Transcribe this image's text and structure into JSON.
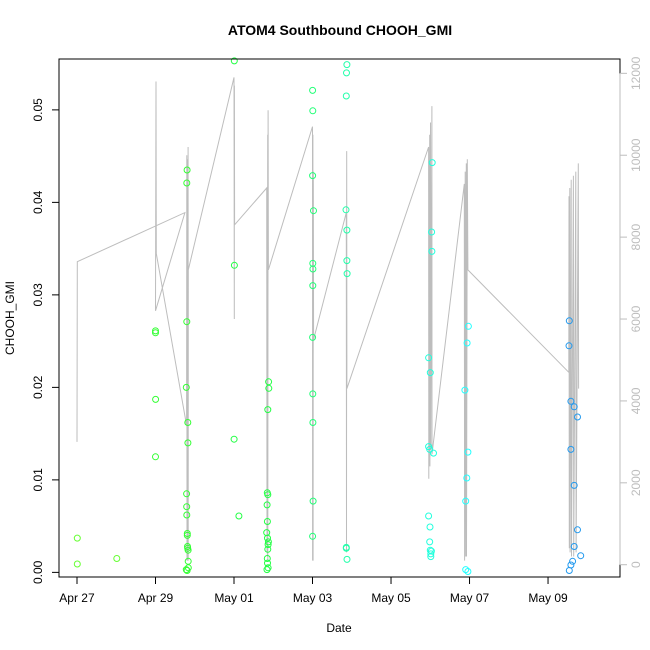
{
  "chart_data": {
    "type": "scatter",
    "title": "ATOM4 Southbound CHOOH_GMI",
    "xlabel": "Date",
    "ylabel": "CHOOH_GMI",
    "xlim": [
      "2016-04-26T13:00",
      "2016-05-10T20:00"
    ],
    "ylim": [
      -0.0005,
      0.0555
    ],
    "x_ticks": [
      {
        "label": "Apr 27",
        "date": "2016-04-27"
      },
      {
        "label": "Apr 29",
        "date": "2016-04-29"
      },
      {
        "label": "May 01",
        "date": "2016-05-01"
      },
      {
        "label": "May 03",
        "date": "2016-05-03"
      },
      {
        "label": "May 05",
        "date": "2016-05-05"
      },
      {
        "label": "May 07",
        "date": "2016-05-07"
      },
      {
        "label": "May 09",
        "date": "2016-05-09"
      }
    ],
    "y_ticks": [
      "0.00",
      "0.01",
      "0.02",
      "0.03",
      "0.04",
      "0.05"
    ],
    "y2_ticks": [
      "0",
      "2000",
      "4000",
      "6000",
      "8000",
      "10000",
      "12000"
    ],
    "y2lim": [
      -300,
      12350
    ],
    "grid": false,
    "colors": {
      "altitude_line": "#bdbdbd",
      "axis": "#000000",
      "right_axis": "#bdbdbd",
      "text": "#000000"
    },
    "series": [
      {
        "color": "#66ff33",
        "points": [
          [
            "2016-04-27T00:10",
            0.0037
          ],
          [
            "2016-04-27T00:10",
            0.0009
          ],
          [
            "2016-04-28T00:20",
            0.0015
          ]
        ]
      },
      {
        "color": "#33ff33",
        "points": [
          [
            "2016-04-29T00:00",
            0.0261
          ],
          [
            "2016-04-29T00:00",
            0.0259
          ],
          [
            "2016-04-29T00:05",
            0.0187
          ],
          [
            "2016-04-29T00:00",
            0.0125
          ],
          [
            "2016-04-29T18:50",
            0.02
          ],
          [
            "2016-04-29T19:00",
            0.0085
          ],
          [
            "2016-04-29T19:05",
            0.0071
          ],
          [
            "2016-04-29T19:10",
            0.0062
          ],
          [
            "2016-04-29T19:10",
            0.0421
          ],
          [
            "2016-04-29T19:10",
            0.0271
          ],
          [
            "2016-04-29T19:20",
            0.0435
          ],
          [
            "2016-04-29T19:25",
            0.0042
          ],
          [
            "2016-04-29T19:25",
            0.004
          ],
          [
            "2016-04-29T19:35",
            0.0028
          ],
          [
            "2016-04-29T19:40",
            0.0026
          ],
          [
            "2016-04-29T19:45",
            0.0162
          ],
          [
            "2016-04-29T19:50",
            0.014
          ],
          [
            "2016-04-29T19:55",
            0.0024
          ],
          [
            "2016-04-29T20:00",
            0.0012
          ],
          [
            "2016-04-29T20:05",
            0.0005
          ],
          [
            "2016-04-29T18:50",
            0.0003
          ],
          [
            "2016-04-29T19:20",
            0.0002
          ]
        ]
      },
      {
        "color": "#22ff44",
        "points": [
          [
            "2016-05-01T00:10",
            0.0553
          ],
          [
            "2016-05-01T00:15",
            0.0332
          ],
          [
            "2016-05-01T00:05",
            0.0144
          ],
          [
            "2016-05-01T03:00",
            0.0061
          ],
          [
            "2016-05-01T20:20",
            0.0086
          ],
          [
            "2016-05-01T20:40",
            0.0084
          ],
          [
            "2016-05-01T20:15",
            0.0073
          ],
          [
            "2016-05-01T20:00",
            0.0043
          ],
          [
            "2016-05-01T20:30",
            0.0037
          ],
          [
            "2016-05-01T20:50",
            0.003
          ],
          [
            "2016-05-01T21:00",
            0.0033
          ],
          [
            "2016-05-01T20:40",
            0.0025
          ],
          [
            "2016-05-01T20:20",
            0.0015
          ],
          [
            "2016-05-01T20:30",
            0.001
          ],
          [
            "2016-05-01T20:50",
            0.0005
          ],
          [
            "2016-05-01T20:10",
            0.0003
          ],
          [
            "2016-05-01T20:40",
            0.0176
          ],
          [
            "2016-05-01T21:10",
            0.0206
          ],
          [
            "2016-05-01T21:15",
            0.0199
          ],
          [
            "2016-05-01T20:25",
            0.0055
          ]
        ]
      },
      {
        "color": "#22ff77",
        "points": [
          [
            "2016-05-03T00:05",
            0.0521
          ],
          [
            "2016-05-03T00:10",
            0.0499
          ],
          [
            "2016-05-03T00:05",
            0.0429
          ],
          [
            "2016-05-03T00:10",
            0.0334
          ],
          [
            "2016-05-03T00:15",
            0.0328
          ],
          [
            "2016-05-03T00:10",
            0.031
          ],
          [
            "2016-05-03T00:05",
            0.0254
          ],
          [
            "2016-05-03T00:10",
            0.0193
          ],
          [
            "2016-05-03T00:15",
            0.0162
          ],
          [
            "2016-05-03T00:20",
            0.0077
          ],
          [
            "2016-05-03T00:05",
            0.0039
          ],
          [
            "2016-05-03T00:35",
            0.0391
          ]
        ]
      },
      {
        "color": "#22ffaa",
        "points": [
          [
            "2016-05-03T21:00",
            0.0549
          ],
          [
            "2016-05-03T20:45",
            0.054
          ],
          [
            "2016-05-03T20:40",
            0.0515
          ],
          [
            "2016-05-03T20:30",
            0.0392
          ],
          [
            "2016-05-03T21:00",
            0.037
          ],
          [
            "2016-05-03T21:00",
            0.0337
          ],
          [
            "2016-05-03T21:10",
            0.0323
          ],
          [
            "2016-05-03T20:40",
            0.0027
          ],
          [
            "2016-05-03T20:40",
            0.0026
          ],
          [
            "2016-05-03T21:05",
            0.0014
          ]
        ]
      },
      {
        "color": "#22ffdd",
        "points": [
          [
            "2016-05-05T23:00",
            0.0232
          ],
          [
            "2016-05-06T00:00",
            0.0216
          ],
          [
            "2016-05-05T23:00",
            0.0136
          ],
          [
            "2016-05-05T23:40",
            0.0133
          ],
          [
            "2016-05-06T02:00",
            0.0129
          ],
          [
            "2016-05-06T01:10",
            0.0443
          ],
          [
            "2016-05-06T00:50",
            0.0368
          ],
          [
            "2016-05-06T01:00",
            0.0347
          ],
          [
            "2016-05-05T23:00",
            0.0061
          ],
          [
            "2016-05-05T23:50",
            0.0049
          ],
          [
            "2016-05-05T23:40",
            0.0033
          ],
          [
            "2016-05-06T00:00",
            0.0024
          ],
          [
            "2016-05-06T00:20",
            0.002
          ],
          [
            "2016-05-06T00:40",
            0.0023
          ],
          [
            "2016-05-06T00:20",
            0.0017
          ]
        ]
      },
      {
        "color": "#22ffff",
        "points": [
          [
            "2016-05-06T21:10",
            0.0197
          ],
          [
            "2016-05-06T22:30",
            0.0248
          ],
          [
            "2016-05-06T23:20",
            0.0266
          ],
          [
            "2016-05-06T23:00",
            0.013
          ],
          [
            "2016-05-06T22:20",
            0.0102
          ],
          [
            "2016-05-06T21:40",
            0.0077
          ],
          [
            "2016-05-06T21:40",
            0.0003
          ],
          [
            "2016-05-06T23:00",
            0.0001
          ]
        ]
      },
      {
        "color": "#2299ee",
        "points": [
          [
            "2016-05-09T13:00",
            0.0272
          ],
          [
            "2016-05-09T12:50",
            0.0245
          ],
          [
            "2016-05-09T14:00",
            0.0185
          ],
          [
            "2016-05-09T16:00",
            0.0179
          ],
          [
            "2016-05-09T18:00",
            0.0168
          ],
          [
            "2016-05-09T14:00",
            0.0133
          ],
          [
            "2016-05-09T16:00",
            0.0094
          ],
          [
            "2016-05-09T18:00",
            0.0046
          ],
          [
            "2016-05-09T16:00",
            0.0028
          ],
          [
            "2016-05-09T20:00",
            0.0018
          ],
          [
            "2016-05-09T15:00",
            0.0012
          ],
          [
            "2016-05-09T14:00",
            0.0008
          ],
          [
            "2016-05-09T13:00",
            0.0002
          ]
        ]
      }
    ],
    "altitude_line": [
      [
        "2016-04-27T00:00",
        3000
      ],
      [
        "2016-04-27T00:10",
        7400
      ],
      [
        "2016-04-29T18:00",
        8600
      ],
      [
        "2016-04-29T00:00",
        6200
      ],
      [
        "2016-04-29T00:20",
        11800
      ],
      [
        "2016-04-29T00:30",
        7600
      ],
      [
        "2016-04-29T19:00",
        3400
      ],
      [
        "2016-04-29T19:10",
        10000
      ],
      [
        "2016-04-29T19:15",
        100
      ],
      [
        "2016-04-29T19:20",
        9800
      ],
      [
        "2016-04-29T19:30",
        200
      ],
      [
        "2016-04-29T19:40",
        9900
      ],
      [
        "2016-04-29T19:45",
        100
      ],
      [
        "2016-04-29T19:55",
        10200
      ],
      [
        "2016-04-29T20:00",
        100
      ],
      [
        "2016-04-29T20:05",
        7200
      ],
      [
        "2016-05-01T00:00",
        11900
      ],
      [
        "2016-05-01T00:10",
        6000
      ],
      [
        "2016-05-01T00:15",
        11700
      ],
      [
        "2016-05-01T00:20",
        8300
      ],
      [
        "2016-05-01T20:00",
        9200
      ],
      [
        "2016-05-01T20:10",
        300
      ],
      [
        "2016-05-01T20:20",
        8500
      ],
      [
        "2016-05-01T20:25",
        200
      ],
      [
        "2016-05-01T20:35",
        10500
      ],
      [
        "2016-05-01T20:40",
        100
      ],
      [
        "2016-05-01T20:50",
        11100
      ],
      [
        "2016-05-01T21:00",
        7200
      ],
      [
        "2016-05-03T00:00",
        10700
      ],
      [
        "2016-05-03T00:05",
        100
      ],
      [
        "2016-05-03T00:15",
        10500
      ],
      [
        "2016-05-03T00:20",
        100
      ],
      [
        "2016-05-03T00:30",
        9600
      ],
      [
        "2016-05-03T00:40",
        5500
      ],
      [
        "2016-05-03T20:40",
        8600
      ],
      [
        "2016-05-03T20:45",
        300
      ],
      [
        "2016-05-03T20:55",
        10100
      ],
      [
        "2016-05-03T21:00",
        4300
      ],
      [
        "2016-05-05T23:00",
        10200
      ],
      [
        "2016-05-05T23:05",
        2100
      ],
      [
        "2016-05-05T23:40",
        10500
      ],
      [
        "2016-05-05T23:45",
        2400
      ],
      [
        "2016-05-06T00:10",
        10800
      ],
      [
        "2016-05-06T00:15",
        2800
      ],
      [
        "2016-05-06T01:00",
        11200
      ],
      [
        "2016-05-06T01:05",
        2700
      ],
      [
        "2016-05-06T20:50",
        9300
      ],
      [
        "2016-05-06T21:00",
        100
      ],
      [
        "2016-05-06T21:20",
        9600
      ],
      [
        "2016-05-06T21:30",
        200
      ],
      [
        "2016-05-06T22:00",
        9800
      ],
      [
        "2016-05-06T22:10",
        200
      ],
      [
        "2016-05-06T22:40",
        9900
      ],
      [
        "2016-05-06T23:00",
        7200
      ],
      [
        "2016-05-09T12:40",
        4700
      ],
      [
        "2016-05-09T12:50",
        9000
      ],
      [
        "2016-05-09T13:00",
        400
      ],
      [
        "2016-05-09T13:20",
        9200
      ],
      [
        "2016-05-09T13:30",
        300
      ],
      [
        "2016-05-09T14:10",
        9400
      ],
      [
        "2016-05-09T14:20",
        200
      ],
      [
        "2016-05-09T15:30",
        9500
      ],
      [
        "2016-05-09T15:40",
        200
      ],
      [
        "2016-05-09T17:00",
        9600
      ],
      [
        "2016-05-09T17:10",
        300
      ],
      [
        "2016-05-09T18:30",
        9800
      ],
      [
        "2016-05-09T18:40",
        4300
      ]
    ]
  }
}
